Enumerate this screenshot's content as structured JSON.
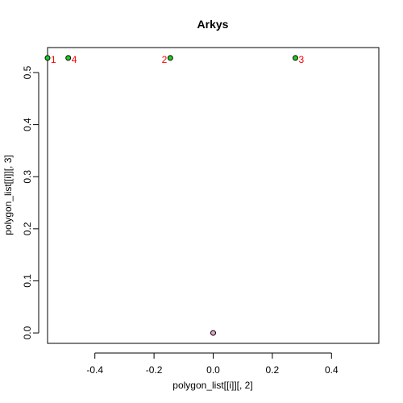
{
  "chart_data": {
    "type": "scatter",
    "title": "Arkys",
    "xlabel": "polygon_list[[i]][, 2]",
    "ylabel": "polygon_list[[i]][, 3]",
    "xlim": [
      -0.56,
      0.56
    ],
    "ylim": [
      -0.02,
      0.548
    ],
    "x_ticks": [
      -0.4,
      -0.2,
      0.0,
      0.2,
      0.4
    ],
    "x_tick_labels": [
      "-0.4",
      "-0.2",
      "0.0",
      "0.2",
      "0.4"
    ],
    "y_ticks": [
      0.0,
      0.1,
      0.2,
      0.3,
      0.4,
      0.5
    ],
    "y_tick_labels": [
      "0.0",
      "0.1",
      "0.2",
      "0.3",
      "0.4",
      "0.5"
    ],
    "grid": false,
    "points": [
      {
        "label": "1",
        "x": -0.56,
        "y": 0.528,
        "fill": "#22cc22",
        "label_side": "right"
      },
      {
        "label": "2",
        "x": -0.145,
        "y": 0.528,
        "fill": "#22cc22",
        "label_side": "left"
      },
      {
        "label": "3",
        "x": 0.278,
        "y": 0.528,
        "fill": "#22cc22",
        "label_side": "right"
      },
      {
        "label": "4",
        "x": -0.49,
        "y": 0.528,
        "fill": "#22cc22",
        "label_side": "right"
      },
      {
        "label": "",
        "x": 0.0,
        "y": 0.0,
        "fill": "#e8a0c8",
        "label_side": "none"
      }
    ],
    "label_color": "#ff0000",
    "point_stroke": "#000000"
  }
}
